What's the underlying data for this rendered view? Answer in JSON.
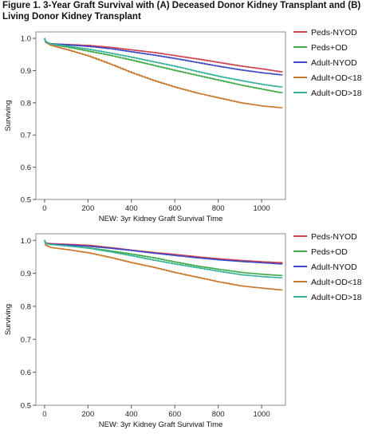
{
  "title": "Figure 1. 3-Year Graft Survival with (A) Deceased Donor Kidney Transplant and (B) Living Donor Kidney Transplant",
  "chart_data": [
    {
      "type": "line",
      "panel": "A",
      "xlabel": "NEW: 3yr Kidney Graft Survival Time",
      "ylabel": "Surviving",
      "xlim": [
        -40,
        1110
      ],
      "ylim": [
        0.5,
        1.02
      ],
      "xticks": [
        "0",
        "200",
        "400",
        "600",
        "800",
        "1000"
      ],
      "yticks": [
        "0.5",
        "0.6",
        "0.7",
        "0.8",
        "0.9",
        "1.0"
      ],
      "grid": false,
      "legend_position": "right",
      "series": [
        {
          "name": "Peds-NYOD",
          "color": "#d0414f",
          "x": [
            0,
            5,
            30,
            100,
            200,
            300,
            400,
            500,
            600,
            700,
            800,
            900,
            1000,
            1095
          ],
          "y": [
            1.0,
            0.987,
            0.983,
            0.981,
            0.978,
            0.972,
            0.964,
            0.956,
            0.946,
            0.936,
            0.925,
            0.914,
            0.905,
            0.895
          ]
        },
        {
          "name": "Peds+OD",
          "color": "#3faa47",
          "x": [
            0,
            5,
            30,
            100,
            200,
            300,
            400,
            500,
            600,
            700,
            800,
            900,
            1000,
            1095
          ],
          "y": [
            1.0,
            0.99,
            0.981,
            0.973,
            0.96,
            0.947,
            0.932,
            0.916,
            0.9,
            0.885,
            0.87,
            0.855,
            0.842,
            0.83
          ]
        },
        {
          "name": "Adult-NYOD",
          "color": "#3b48c4",
          "x": [
            0,
            5,
            30,
            100,
            200,
            300,
            400,
            500,
            600,
            700,
            800,
            900,
            1000,
            1095
          ],
          "y": [
            1.0,
            0.987,
            0.983,
            0.98,
            0.975,
            0.968,
            0.958,
            0.948,
            0.937,
            0.925,
            0.913,
            0.902,
            0.893,
            0.886
          ]
        },
        {
          "name": "Adult+OD<18",
          "color": "#c8782b",
          "x": [
            0,
            5,
            30,
            100,
            200,
            300,
            400,
            500,
            600,
            700,
            800,
            900,
            1000,
            1095
          ],
          "y": [
            1.0,
            0.987,
            0.978,
            0.965,
            0.945,
            0.92,
            0.893,
            0.869,
            0.848,
            0.83,
            0.815,
            0.8,
            0.79,
            0.784
          ]
        },
        {
          "name": "Adult+OD>18",
          "color": "#37b399",
          "x": [
            0,
            5,
            30,
            100,
            200,
            300,
            400,
            500,
            600,
            700,
            800,
            900,
            1000,
            1095
          ],
          "y": [
            1.0,
            0.988,
            0.982,
            0.976,
            0.966,
            0.954,
            0.941,
            0.927,
            0.913,
            0.897,
            0.882,
            0.869,
            0.857,
            0.848
          ]
        }
      ]
    },
    {
      "type": "line",
      "panel": "B",
      "xlabel": "NEW: 3yr Kidney Graft Survival Time",
      "ylabel": "Surviving",
      "xlim": [
        -40,
        1110
      ],
      "ylim": [
        0.5,
        1.02
      ],
      "xticks": [
        "0",
        "200",
        "400",
        "600",
        "800",
        "1000"
      ],
      "yticks": [
        "0.5",
        "0.6",
        "0.7",
        "0.8",
        "0.9",
        "1.0"
      ],
      "grid": false,
      "legend_position": "right",
      "series": [
        {
          "name": "Peds-NYOD",
          "color": "#d0414f",
          "x": [
            0,
            5,
            30,
            100,
            200,
            300,
            400,
            500,
            600,
            700,
            800,
            900,
            1000,
            1095
          ],
          "y": [
            1.0,
            0.992,
            0.99,
            0.988,
            0.985,
            0.978,
            0.97,
            0.963,
            0.957,
            0.95,
            0.944,
            0.939,
            0.935,
            0.932
          ]
        },
        {
          "name": "Peds+OD",
          "color": "#3faa47",
          "x": [
            0,
            5,
            30,
            100,
            200,
            300,
            400,
            500,
            600,
            700,
            800,
            900,
            1000,
            1095
          ],
          "y": [
            1.0,
            0.99,
            0.988,
            0.983,
            0.977,
            0.968,
            0.958,
            0.947,
            0.934,
            0.922,
            0.912,
            0.903,
            0.897,
            0.893
          ]
        },
        {
          "name": "Adult-NYOD",
          "color": "#3b48c4",
          "x": [
            0,
            5,
            30,
            100,
            200,
            300,
            400,
            500,
            600,
            700,
            800,
            900,
            1000,
            1095
          ],
          "y": [
            1.0,
            0.99,
            0.988,
            0.986,
            0.982,
            0.976,
            0.969,
            0.961,
            0.954,
            0.947,
            0.941,
            0.936,
            0.932,
            0.928
          ]
        },
        {
          "name": "Adult+OD<18",
          "color": "#c8782b",
          "x": [
            0,
            5,
            30,
            100,
            200,
            300,
            400,
            500,
            600,
            700,
            800,
            900,
            1000,
            1095
          ],
          "y": [
            1.0,
            0.985,
            0.978,
            0.972,
            0.962,
            0.948,
            0.932,
            0.918,
            0.902,
            0.888,
            0.874,
            0.862,
            0.855,
            0.849
          ]
        },
        {
          "name": "Adult+OD>18",
          "color": "#37b399",
          "x": [
            0,
            5,
            30,
            100,
            200,
            300,
            400,
            500,
            600,
            700,
            800,
            900,
            1000,
            1095
          ],
          "y": [
            1.0,
            0.99,
            0.987,
            0.983,
            0.976,
            0.965,
            0.953,
            0.94,
            0.928,
            0.917,
            0.906,
            0.896,
            0.89,
            0.886
          ]
        }
      ]
    }
  ]
}
